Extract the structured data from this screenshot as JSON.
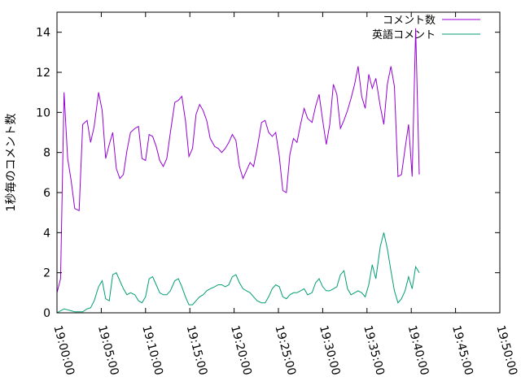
{
  "chart_data": {
    "type": "line",
    "title": "",
    "xlabel": "",
    "ylabel": "1秒毎のコメント数",
    "xlim_minutes": [
      0,
      50
    ],
    "xticks": [
      "19:00:00",
      "19:05:00",
      "19:10:00",
      "19:15:00",
      "19:20:00",
      "19:25:00",
      "19:30:00",
      "19:35:00",
      "19:40:00",
      "19:45:00",
      "19:50:00"
    ],
    "ylim": [
      0,
      15
    ],
    "yticks": [
      0,
      2,
      4,
      6,
      8,
      10,
      12,
      14
    ],
    "grid": false,
    "legend_position": "top-right",
    "series": [
      {
        "name": "コメント数",
        "color": "#9400d3",
        "points": [
          [
            0.0,
            1.0
          ],
          [
            0.4,
            1.7
          ],
          [
            0.8,
            11.0
          ],
          [
            1.2,
            7.7
          ],
          [
            1.6,
            6.6
          ],
          [
            2.0,
            5.2
          ],
          [
            2.5,
            5.1
          ],
          [
            2.9,
            9.4
          ],
          [
            3.4,
            9.6
          ],
          [
            3.8,
            8.5
          ],
          [
            4.2,
            9.3
          ],
          [
            4.7,
            11.0
          ],
          [
            5.1,
            10.1
          ],
          [
            5.5,
            7.7
          ],
          [
            5.9,
            8.4
          ],
          [
            6.3,
            9.0
          ],
          [
            6.7,
            7.2
          ],
          [
            7.1,
            6.7
          ],
          [
            7.5,
            6.9
          ],
          [
            7.9,
            8.1
          ],
          [
            8.3,
            9.0
          ],
          [
            8.8,
            9.2
          ],
          [
            9.2,
            9.3
          ],
          [
            9.6,
            7.7
          ],
          [
            10.0,
            7.6
          ],
          [
            10.4,
            8.9
          ],
          [
            10.8,
            8.8
          ],
          [
            11.2,
            8.3
          ],
          [
            11.6,
            7.6
          ],
          [
            12.0,
            7.3
          ],
          [
            12.4,
            7.7
          ],
          [
            12.8,
            9.0
          ],
          [
            13.3,
            10.5
          ],
          [
            13.7,
            10.6
          ],
          [
            14.1,
            10.8
          ],
          [
            14.5,
            9.6
          ],
          [
            14.9,
            7.8
          ],
          [
            15.3,
            8.2
          ],
          [
            15.7,
            9.9
          ],
          [
            16.1,
            10.4
          ],
          [
            16.5,
            10.1
          ],
          [
            16.9,
            9.6
          ],
          [
            17.3,
            8.7
          ],
          [
            17.8,
            8.3
          ],
          [
            18.2,
            8.2
          ],
          [
            18.6,
            8.0
          ],
          [
            19.0,
            8.2
          ],
          [
            19.4,
            8.5
          ],
          [
            19.8,
            8.9
          ],
          [
            20.2,
            8.6
          ],
          [
            20.6,
            7.3
          ],
          [
            21.0,
            6.7
          ],
          [
            21.4,
            7.1
          ],
          [
            21.8,
            7.5
          ],
          [
            22.2,
            7.3
          ],
          [
            22.6,
            8.2
          ],
          [
            23.1,
            9.5
          ],
          [
            23.5,
            9.6
          ],
          [
            23.9,
            9.0
          ],
          [
            24.3,
            8.8
          ],
          [
            24.7,
            9.0
          ],
          [
            25.1,
            7.8
          ],
          [
            25.5,
            6.1
          ],
          [
            25.9,
            6.0
          ],
          [
            26.3,
            7.9
          ],
          [
            26.7,
            8.7
          ],
          [
            27.1,
            8.5
          ],
          [
            27.5,
            9.4
          ],
          [
            27.9,
            10.2
          ],
          [
            28.3,
            9.7
          ],
          [
            28.8,
            9.5
          ],
          [
            29.2,
            10.3
          ],
          [
            29.6,
            10.9
          ],
          [
            30.0,
            9.6
          ],
          [
            30.4,
            8.4
          ],
          [
            30.8,
            9.4
          ],
          [
            31.2,
            11.4
          ],
          [
            31.6,
            10.9
          ],
          [
            32.0,
            9.2
          ],
          [
            32.4,
            9.6
          ],
          [
            32.8,
            10.1
          ],
          [
            33.2,
            10.7
          ],
          [
            33.6,
            11.4
          ],
          [
            34.0,
            12.3
          ],
          [
            34.4,
            10.8
          ],
          [
            34.8,
            10.2
          ],
          [
            35.2,
            11.9
          ],
          [
            35.6,
            11.2
          ],
          [
            36.0,
            11.7
          ],
          [
            36.5,
            10.3
          ],
          [
            36.9,
            9.4
          ],
          [
            37.3,
            11.4
          ],
          [
            37.7,
            12.3
          ],
          [
            38.1,
            11.3
          ],
          [
            38.5,
            6.8
          ],
          [
            38.9,
            6.9
          ],
          [
            39.3,
            8.2
          ],
          [
            39.7,
            9.4
          ],
          [
            40.1,
            6.8
          ],
          [
            40.5,
            14.2
          ],
          [
            40.9,
            6.9
          ]
        ]
      },
      {
        "name": "英語コメント",
        "color": "#009e73",
        "points": [
          [
            0.0,
            0.0
          ],
          [
            0.4,
            0.1
          ],
          [
            0.8,
            0.2
          ],
          [
            1.2,
            0.15
          ],
          [
            1.6,
            0.1
          ],
          [
            2.0,
            0.05
          ],
          [
            2.5,
            0.05
          ],
          [
            2.9,
            0.05
          ],
          [
            3.4,
            0.2
          ],
          [
            3.8,
            0.25
          ],
          [
            4.2,
            0.6
          ],
          [
            4.7,
            1.3
          ],
          [
            5.1,
            1.6
          ],
          [
            5.5,
            0.7
          ],
          [
            5.9,
            0.6
          ],
          [
            6.3,
            1.9
          ],
          [
            6.7,
            2.0
          ],
          [
            7.1,
            1.6
          ],
          [
            7.5,
            1.2
          ],
          [
            7.9,
            0.9
          ],
          [
            8.3,
            1.0
          ],
          [
            8.8,
            0.9
          ],
          [
            9.2,
            0.6
          ],
          [
            9.6,
            0.5
          ],
          [
            10.0,
            0.8
          ],
          [
            10.4,
            1.7
          ],
          [
            10.8,
            1.8
          ],
          [
            11.2,
            1.4
          ],
          [
            11.6,
            1.0
          ],
          [
            12.0,
            0.9
          ],
          [
            12.4,
            0.9
          ],
          [
            12.8,
            1.1
          ],
          [
            13.3,
            1.6
          ],
          [
            13.7,
            1.7
          ],
          [
            14.1,
            1.3
          ],
          [
            14.5,
            0.8
          ],
          [
            14.9,
            0.4
          ],
          [
            15.3,
            0.4
          ],
          [
            15.7,
            0.6
          ],
          [
            16.1,
            0.8
          ],
          [
            16.5,
            0.9
          ],
          [
            16.9,
            1.1
          ],
          [
            17.3,
            1.2
          ],
          [
            17.8,
            1.3
          ],
          [
            18.2,
            1.4
          ],
          [
            18.6,
            1.4
          ],
          [
            19.0,
            1.3
          ],
          [
            19.4,
            1.4
          ],
          [
            19.8,
            1.8
          ],
          [
            20.2,
            1.9
          ],
          [
            20.6,
            1.5
          ],
          [
            21.0,
            1.2
          ],
          [
            21.4,
            1.1
          ],
          [
            21.8,
            1.0
          ],
          [
            22.2,
            0.8
          ],
          [
            22.6,
            0.6
          ],
          [
            23.1,
            0.5
          ],
          [
            23.5,
            0.5
          ],
          [
            23.9,
            0.8
          ],
          [
            24.3,
            1.2
          ],
          [
            24.7,
            1.4
          ],
          [
            25.1,
            1.3
          ],
          [
            25.5,
            0.8
          ],
          [
            25.9,
            0.7
          ],
          [
            26.3,
            0.9
          ],
          [
            26.7,
            1.0
          ],
          [
            27.1,
            1.0
          ],
          [
            27.5,
            1.1
          ],
          [
            27.9,
            1.2
          ],
          [
            28.3,
            0.9
          ],
          [
            28.8,
            1.0
          ],
          [
            29.2,
            1.5
          ],
          [
            29.6,
            1.7
          ],
          [
            30.0,
            1.3
          ],
          [
            30.4,
            1.1
          ],
          [
            30.8,
            1.1
          ],
          [
            31.2,
            1.2
          ],
          [
            31.6,
            1.3
          ],
          [
            32.0,
            1.9
          ],
          [
            32.4,
            2.1
          ],
          [
            32.8,
            1.2
          ],
          [
            33.2,
            0.9
          ],
          [
            33.6,
            1.0
          ],
          [
            34.0,
            1.1
          ],
          [
            34.4,
            1.0
          ],
          [
            34.8,
            0.8
          ],
          [
            35.2,
            1.4
          ],
          [
            35.6,
            2.4
          ],
          [
            36.0,
            1.7
          ],
          [
            36.5,
            3.3
          ],
          [
            36.9,
            4.0
          ],
          [
            37.3,
            3.2
          ],
          [
            37.7,
            2.1
          ],
          [
            38.1,
            1.1
          ],
          [
            38.5,
            0.5
          ],
          [
            38.9,
            0.7
          ],
          [
            39.3,
            1.1
          ],
          [
            39.7,
            1.8
          ],
          [
            40.1,
            1.2
          ],
          [
            40.5,
            2.3
          ],
          [
            40.9,
            2.0
          ]
        ]
      }
    ]
  }
}
